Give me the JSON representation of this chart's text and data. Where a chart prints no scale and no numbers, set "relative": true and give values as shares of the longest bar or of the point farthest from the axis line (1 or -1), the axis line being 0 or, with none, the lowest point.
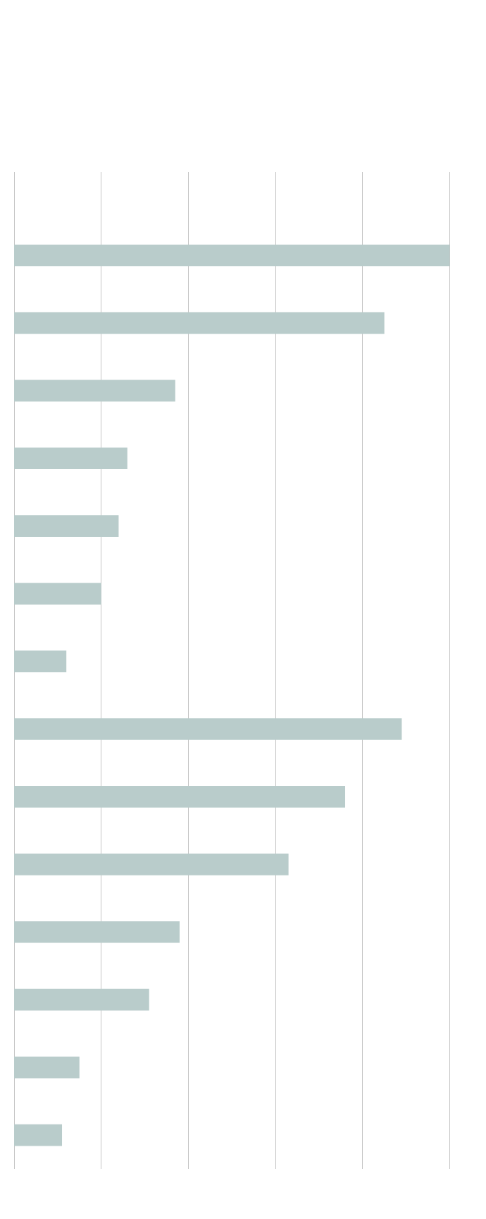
{
  "chart_data": {
    "type": "bar",
    "orientation": "horizontal",
    "relative": true,
    "categories": [
      null,
      null,
      null,
      null,
      null,
      null,
      null,
      null,
      null,
      null,
      null,
      null,
      null,
      null
    ],
    "values": [
      1,
      0.85,
      0.37,
      0.26,
      0.24,
      0.2,
      0.12,
      0.89,
      0.76,
      0.63,
      0.38,
      0.31,
      0.15,
      0.11
    ],
    "color": "#b9cccb",
    "grid": "x"
  }
}
